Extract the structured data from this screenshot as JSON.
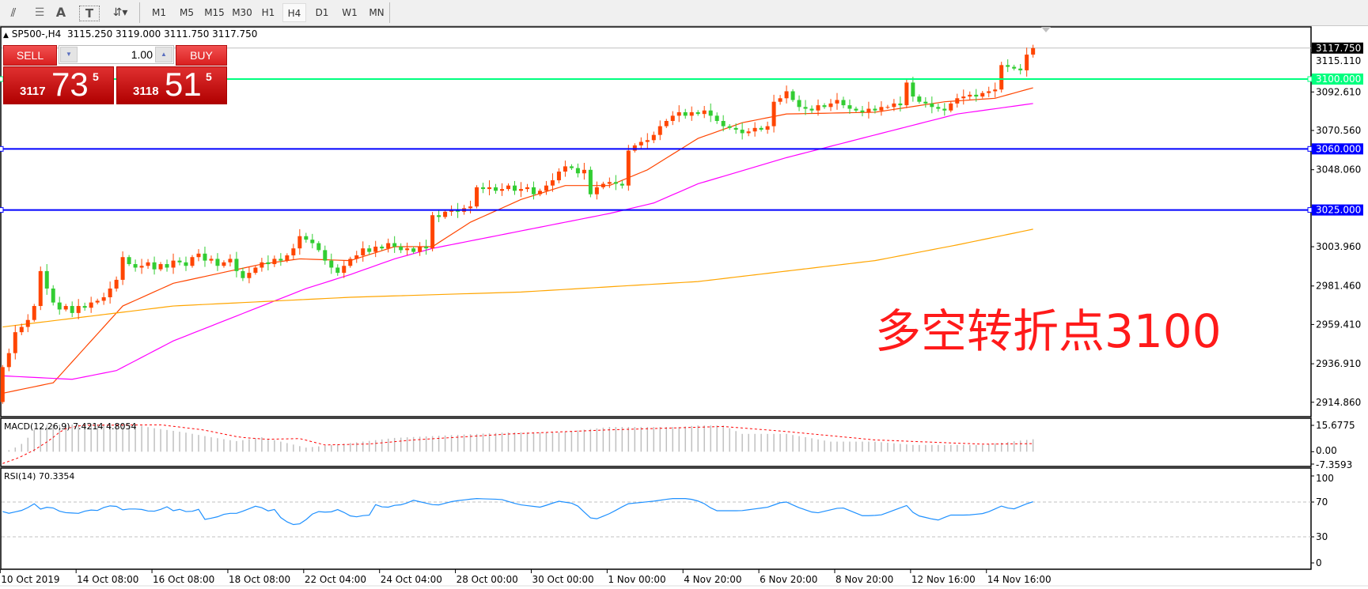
{
  "toolbar": {
    "tools": [
      {
        "name": "fibonacci-expansion-icon",
        "glyph": "⫽"
      },
      {
        "name": "fibonacci-lines-icon",
        "glyph": "☰"
      },
      {
        "name": "text-label-icon",
        "glyph": "A"
      },
      {
        "name": "text-box-icon",
        "glyph": "T"
      },
      {
        "name": "arrows-dropdown-icon",
        "glyph": "⇵▾"
      }
    ],
    "timeframes": [
      "M1",
      "M5",
      "M15",
      "M30",
      "H1",
      "H4",
      "D1",
      "W1",
      "MN"
    ],
    "active_timeframe": "H4"
  },
  "symbol_line": {
    "arrow": "▲",
    "symbol": "SP500-,H4",
    "ohlc": "3115.250 3119.000 3111.750 3117.750"
  },
  "trade_panel": {
    "sell_label": "SELL",
    "buy_label": "BUY",
    "volume": "1.00",
    "sell_price": {
      "prefix": "3117",
      "big": "73",
      "sup": "5"
    },
    "buy_price": {
      "prefix": "3118",
      "big": "51",
      "sup": "5"
    }
  },
  "annotation": "多空转折点3100",
  "colors": {
    "bull": "#ff4500",
    "bear": "#32cd32",
    "ma_fast": "#ff4500",
    "ma_mid": "#ff00ff",
    "ma_slow": "#ffa500",
    "line_3100": "#00ff7f",
    "line_blue": "#0000ff",
    "macd_hist": "#c0c0c0",
    "macd_signal": "#ff0000",
    "rsi": "#1e90ff"
  },
  "chart_data": [
    {
      "type": "candlestick",
      "title": "SP500-,H4",
      "ylim": [
        2907,
        3125
      ],
      "open_first": 2915,
      "close": [
        2935,
        2943,
        2955,
        2958,
        2962,
        2970,
        2990,
        2980,
        2972,
        2968,
        2970,
        2966,
        2970,
        2969,
        2972,
        2973,
        2975,
        2980,
        2985,
        2998,
        2994,
        2992,
        2993,
        2995,
        2991,
        2994,
        2992,
        2996,
        2995,
        2993,
        2998,
        3000,
        2996,
        2997,
        2993,
        2995,
        2997,
        2990,
        2986,
        2989,
        2992,
        2995,
        2994,
        2997,
        2996,
        2999,
        3003,
        3010,
        3008,
        3006,
        3002,
        2996,
        2992,
        2989,
        2993,
        2997,
        2999,
        3003,
        3001,
        3004,
        3003,
        3006,
        3004,
        3002,
        3003,
        3001,
        3004,
        3003,
        3022,
        3021,
        3024,
        3025,
        3024,
        3026,
        3027,
        3038,
        3037,
        3038,
        3036,
        3037,
        3039,
        3036,
        3037,
        3038,
        3034,
        3036,
        3039,
        3042,
        3047,
        3050,
        3049,
        3046,
        3048,
        3034,
        3038,
        3040,
        3041,
        3040,
        3039,
        3059,
        3062,
        3064,
        3065,
        3068,
        3073,
        3076,
        3079,
        3081,
        3079,
        3081,
        3080,
        3082,
        3079,
        3076,
        3073,
        3072,
        3071,
        3069,
        3070,
        3072,
        3071,
        3073,
        3087,
        3089,
        3093,
        3088,
        3084,
        3083,
        3082,
        3085,
        3084,
        3086,
        3088,
        3085,
        3083,
        3082,
        3081,
        3083,
        3082,
        3084,
        3084,
        3086,
        3085,
        3098,
        3090,
        3087,
        3086,
        3084,
        3083,
        3082,
        3086,
        3089,
        3090,
        3091,
        3090,
        3092,
        3093,
        3094,
        3108,
        3107,
        3106,
        3105,
        3114,
        3117.75
      ],
      "last_price": "3117.750",
      "price_ticks": [
        "3115.110",
        "3092.610",
        "3070.560",
        "3048.060",
        "3003.960",
        "2981.460",
        "2959.410",
        "2936.910",
        "2914.860"
      ],
      "horizontal_lines": [
        {
          "value": 3100,
          "label": "3100.000",
          "color": "#00ff7f"
        },
        {
          "value": 3060,
          "label": "3060.000",
          "color": "#0000ff"
        },
        {
          "value": 3025,
          "label": "3025.000",
          "color": "#0000ff"
        }
      ],
      "moving_averages": [
        {
          "color": "#ff4500",
          "points": [
            [
              0,
              2920
            ],
            [
              8,
              2926
            ],
            [
              13,
              2946
            ],
            [
              19,
              2970
            ],
            [
              27,
              2983
            ],
            [
              41,
              2994
            ],
            [
              47,
              2997
            ],
            [
              55,
              2996
            ],
            [
              62,
              3004
            ],
            [
              68,
              3004
            ],
            [
              74,
              3018
            ],
            [
              82,
              3031
            ],
            [
              89,
              3039
            ],
            [
              96,
              3039
            ],
            [
              102,
              3048
            ],
            [
              110,
              3066
            ],
            [
              117,
              3075
            ],
            [
              124,
              3080
            ],
            [
              138,
              3081
            ],
            [
              149,
              3087
            ],
            [
              157,
              3089
            ],
            [
              163,
              3095
            ]
          ]
        },
        {
          "color": "#ff00ff",
          "points": [
            [
              0,
              2930
            ],
            [
              11,
              2928
            ],
            [
              18,
              2933
            ],
            [
              27,
              2950
            ],
            [
              41,
              2970
            ],
            [
              48,
              2980
            ],
            [
              55,
              2988
            ],
            [
              62,
              2997
            ],
            [
              68,
              3003
            ],
            [
              82,
              3013
            ],
            [
              96,
              3023
            ],
            [
              103,
              3029
            ],
            [
              110,
              3040
            ],
            [
              124,
              3055
            ],
            [
              138,
              3068
            ],
            [
              151,
              3080
            ],
            [
              163,
              3086
            ]
          ]
        },
        {
          "color": "#ffa500",
          "points": [
            [
              0,
              2958
            ],
            [
              27,
              2970
            ],
            [
              55,
              2975
            ],
            [
              82,
              2978
            ],
            [
              110,
              2984
            ],
            [
              124,
              2990
            ],
            [
              138,
              2996
            ],
            [
              151,
              3005
            ],
            [
              163,
              3014
            ]
          ]
        }
      ],
      "time_labels": [
        {
          "bar": 0,
          "label": "10 Oct 2019"
        },
        {
          "bar": 12,
          "label": "14 Oct 08:00"
        },
        {
          "bar": 24,
          "label": "16 Oct 08:00"
        },
        {
          "bar": 36,
          "label": "18 Oct 08:00"
        },
        {
          "bar": 48,
          "label": "22 Oct 04:00"
        },
        {
          "bar": 60,
          "label": "24 Oct 04:00"
        },
        {
          "bar": 72,
          "label": "28 Oct 00:00"
        },
        {
          "bar": 84,
          "label": "30 Oct 00:00"
        },
        {
          "bar": 96,
          "label": "1 Nov 00:00"
        },
        {
          "bar": 108,
          "label": "4 Nov 20:00"
        },
        {
          "bar": 120,
          "label": "6 Nov 20:00"
        },
        {
          "bar": 132,
          "label": "8 Nov 20:00"
        },
        {
          "bar": 144,
          "label": "12 Nov 16:00"
        },
        {
          "bar": 156,
          "label": "14 Nov 16:00"
        }
      ]
    },
    {
      "type": "bar",
      "title": "MACD(12,26,9) 7.4214 4.8054",
      "ylim": [
        -7.3593,
        15.6775
      ],
      "ticks": [
        "15.6775",
        "0.00",
        "-7.3593"
      ],
      "macd_points": [
        [
          0,
          0
        ],
        [
          1.5,
          1.4
        ],
        [
          3.4,
          5.5
        ],
        [
          5,
          13
        ],
        [
          6.7,
          16
        ],
        [
          20.5,
          16.6
        ],
        [
          23.4,
          14.3
        ],
        [
          28.75,
          11.5
        ],
        [
          33,
          8.6
        ],
        [
          37,
          6.3
        ],
        [
          41,
          8.6
        ],
        [
          45.5,
          4.7
        ],
        [
          48,
          2.4
        ],
        [
          54,
          4.7
        ],
        [
          62,
          8.2
        ],
        [
          80,
          11.5
        ],
        [
          88,
          11.5
        ],
        [
          96,
          14.7
        ],
        [
          107,
          14.7
        ],
        [
          110,
          15.6
        ],
        [
          114,
          15.6
        ],
        [
          117,
          10.6
        ],
        [
          124,
          10.6
        ],
        [
          131,
          6
        ],
        [
          138,
          6
        ],
        [
          144,
          4
        ],
        [
          155,
          4
        ],
        [
          157,
          5
        ],
        [
          163,
          7.42
        ]
      ],
      "signal_points": [
        [
          0,
          -7
        ],
        [
          2.5,
          -3.7
        ],
        [
          5,
          1
        ],
        [
          7.5,
          7
        ],
        [
          9.6,
          13.4
        ],
        [
          12.5,
          15.7
        ],
        [
          25,
          16
        ],
        [
          31.7,
          13
        ],
        [
          37.5,
          8.6
        ],
        [
          41.7,
          7.4
        ],
        [
          47,
          7.8
        ],
        [
          51,
          4
        ],
        [
          58,
          4.6
        ],
        [
          65,
          7
        ],
        [
          80,
          10.5
        ],
        [
          96,
          13
        ],
        [
          114,
          15
        ],
        [
          124,
          12
        ],
        [
          138,
          7
        ],
        [
          155,
          4.5
        ],
        [
          163,
          4.81
        ]
      ]
    },
    {
      "type": "line",
      "title": "RSI(14) 70.3354",
      "ylim": [
        0,
        100
      ],
      "ticks": [
        "100",
        "70",
        "30",
        "0"
      ],
      "levels": [
        70,
        30
      ],
      "points": [
        [
          0,
          59
        ],
        [
          0.6,
          56.4
        ],
        [
          3.4,
          61
        ],
        [
          5,
          68
        ],
        [
          5.9,
          61.6
        ],
        [
          7.5,
          65
        ],
        [
          9.4,
          58
        ],
        [
          12,
          57
        ],
        [
          13,
          59.5
        ],
        [
          14.6,
          61.6
        ],
        [
          15.4,
          59
        ],
        [
          16.3,
          66
        ],
        [
          18,
          65
        ],
        [
          19,
          61
        ],
        [
          19.6,
          62
        ],
        [
          21.7,
          62
        ],
        [
          23.4,
          59
        ],
        [
          24.6,
          60
        ],
        [
          25.9,
          65
        ],
        [
          27,
          60
        ],
        [
          28,
          61.6
        ],
        [
          29.4,
          58
        ],
        [
          31,
          61.6
        ],
        [
          32,
          50
        ],
        [
          33.8,
          52.5
        ],
        [
          35.4,
          57
        ],
        [
          37.1,
          57
        ],
        [
          39.6,
          64
        ],
        [
          40.6,
          67
        ],
        [
          41.5,
          59
        ],
        [
          43.1,
          61.6
        ],
        [
          44.2,
          50
        ],
        [
          45.9,
          44
        ],
        [
          47.5,
          45.4
        ],
        [
          48.6,
          55
        ],
        [
          50,
          59
        ],
        [
          51.7,
          58
        ],
        [
          53.1,
          61.6
        ],
        [
          55.6,
          51.7
        ],
        [
          56.3,
          54
        ],
        [
          58.1,
          55
        ],
        [
          59,
          67
        ],
        [
          60.6,
          63
        ],
        [
          61.7,
          66
        ],
        [
          63.3,
          67
        ],
        [
          65,
          72
        ],
        [
          68.6,
          66
        ],
        [
          71.3,
          71
        ],
        [
          74.8,
          74
        ],
        [
          78.9,
          73
        ],
        [
          81.7,
          67
        ],
        [
          85.1,
          64
        ],
        [
          87.9,
          71
        ],
        [
          90.6,
          68
        ],
        [
          93.4,
          49
        ],
        [
          96.1,
          57
        ],
        [
          98.9,
          68
        ],
        [
          103,
          71
        ],
        [
          105.8,
          74
        ],
        [
          108.5,
          74
        ],
        [
          110.6,
          70
        ],
        [
          112.7,
          60
        ],
        [
          116.8,
          60
        ],
        [
          121,
          64
        ],
        [
          123.7,
          71
        ],
        [
          125.8,
          64
        ],
        [
          128.6,
          57
        ],
        [
          132.7,
          64
        ],
        [
          136.1,
          54
        ],
        [
          138.9,
          55
        ],
        [
          143,
          66
        ],
        [
          144.4,
          55
        ],
        [
          147.9,
          49
        ],
        [
          149.9,
          55
        ],
        [
          152.7,
          55
        ],
        [
          155.4,
          57
        ],
        [
          158.2,
          66
        ],
        [
          159.6,
          61
        ],
        [
          162.8,
          70.34
        ]
      ]
    }
  ]
}
